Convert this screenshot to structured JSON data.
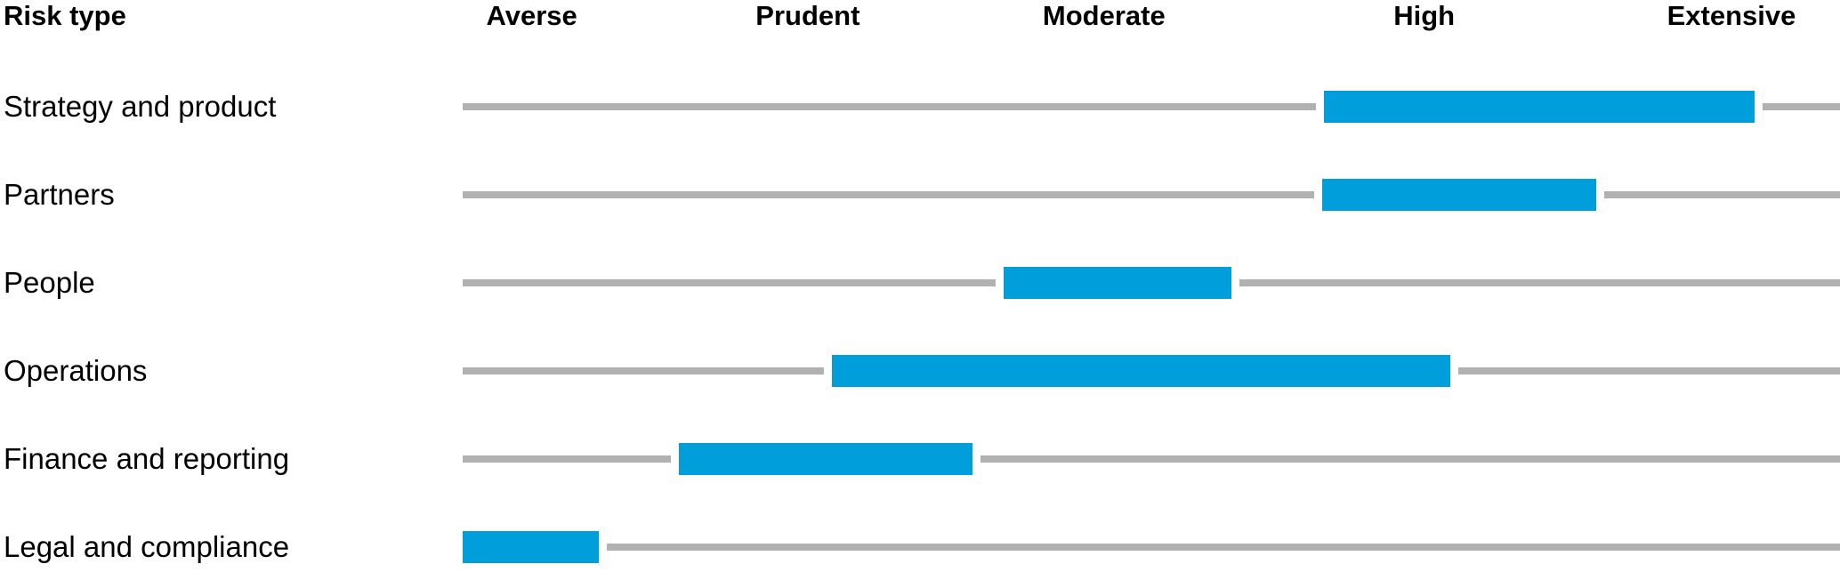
{
  "header": {
    "row_label": "Risk type",
    "scale": [
      {
        "label": "Averse",
        "center_pct": 28.9
      },
      {
        "label": "Prudent",
        "center_pct": 43.9
      },
      {
        "label": "Moderate",
        "center_pct": 60.0
      },
      {
        "label": "High",
        "center_pct": 77.4
      },
      {
        "label": "Extensive",
        "center_pct": 94.1
      }
    ]
  },
  "chart_data": {
    "type": "range_bar",
    "orientation": "horizontal",
    "title": "",
    "x_scale_labels": [
      "Averse",
      "Prudent",
      "Moderate",
      "High",
      "Extensive"
    ],
    "x_range_units": [
      0,
      5
    ],
    "grid": false,
    "legend": false,
    "rows": [
      {
        "label": "Strategy and product",
        "range_units": [
          3.1,
          4.7
        ],
        "range_pct": [
          62.5,
          93.8
        ]
      },
      {
        "label": "Partners",
        "range_units": [
          3.1,
          4.1
        ],
        "range_pct": [
          62.4,
          82.3
        ]
      },
      {
        "label": "People",
        "range_units": [
          2.0,
          2.8
        ],
        "range_pct": [
          39.3,
          55.8
        ]
      },
      {
        "label": "Operations",
        "range_units": [
          1.3,
          3.6
        ],
        "range_pct": [
          26.8,
          71.7
        ]
      },
      {
        "label": "Finance and reporting",
        "range_units": [
          0.8,
          1.85
        ],
        "range_pct": [
          15.7,
          37.0
        ]
      },
      {
        "label": "Legal and compliance",
        "range_units": [
          0.0,
          0.5
        ],
        "range_pct": [
          0.0,
          9.9
        ]
      }
    ],
    "colors": {
      "bar": "#009FDB",
      "track": "#B1B1B1",
      "text": "#000000"
    }
  }
}
